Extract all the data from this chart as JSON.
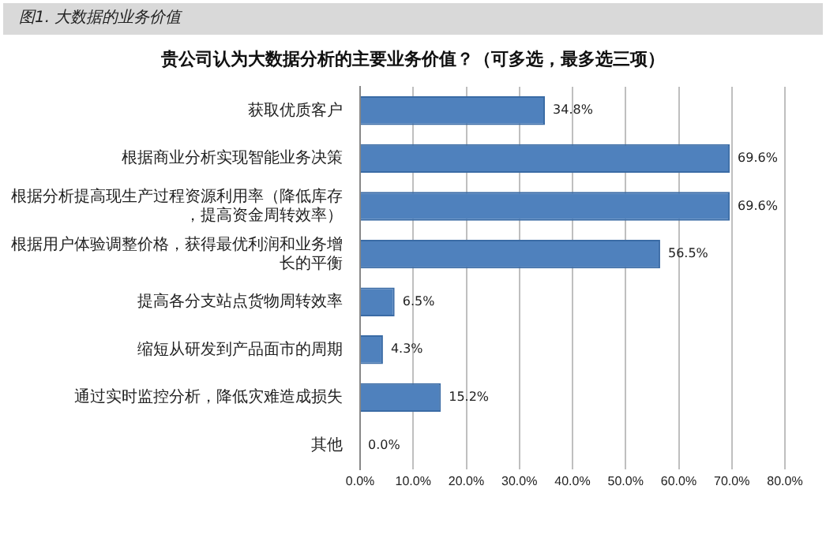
{
  "chart_data": {
    "type": "bar",
    "orientation": "horizontal",
    "title": "贵公司认为大数据分析的主要业务价值？（可多选，最多选三项）",
    "annotations": [
      "图1. 大数据的业务价值"
    ],
    "categories": [
      "获取优质客户",
      "根据商业分析实现智能业务决策",
      "根据分析提高现生产过程资源利用率（降低库存，提高资金周转效率）",
      "根据用户体验调整价格，获得最优利润和业务增长的平衡",
      "提高各分支站点货物周转效率",
      "缩短从研发到产品面市的周期",
      "通过实时监控分析，降低灾难造成损失",
      "其他"
    ],
    "values": [
      34.8,
      69.6,
      69.6,
      56.5,
      6.5,
      4.3,
      15.2,
      0.0
    ],
    "color": "#4f81bd",
    "value_labels": [
      "34.8%",
      "69.6%",
      "69.6%",
      "56.5%",
      "6.5%",
      "4.3%",
      "15.2%",
      "0.0%"
    ],
    "xlim": [
      0,
      80
    ],
    "xticks": [
      {
        "value": 0,
        "label": "0.0%"
      },
      {
        "value": 10,
        "label": "10.0%"
      },
      {
        "value": 20,
        "label": "20.0%"
      },
      {
        "value": 30,
        "label": "30.0%"
      },
      {
        "value": 40,
        "label": "40.0%"
      },
      {
        "value": 50,
        "label": "50.0%"
      },
      {
        "value": 60,
        "label": "60.0%"
      },
      {
        "value": 70,
        "label": "70.0%"
      },
      {
        "value": 80,
        "label": "80.0%"
      }
    ],
    "grid": "x",
    "legend": false
  }
}
